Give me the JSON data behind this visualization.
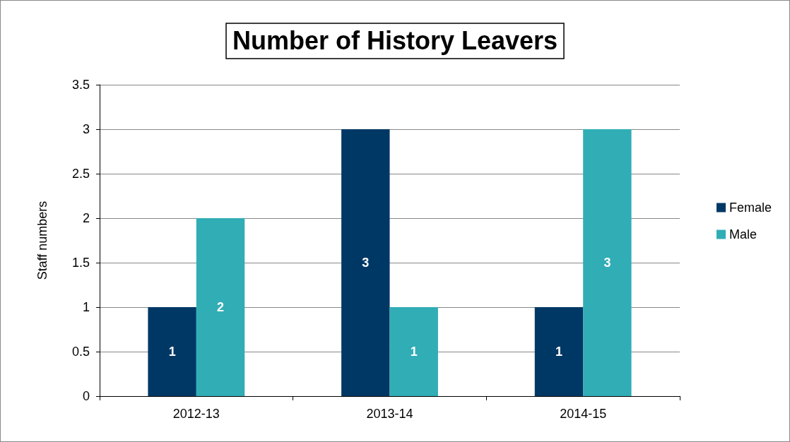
{
  "chart_data": {
    "type": "bar",
    "title": "Number of History Leavers",
    "ylabel": "Staff numbers",
    "categories": [
      "2012-13",
      "2013-14",
      "2014-15"
    ],
    "series": [
      {
        "name": "Female",
        "color": "#003865",
        "values": [
          1,
          3,
          1
        ]
      },
      {
        "name": "Male",
        "color": "#31adb6",
        "values": [
          2,
          1,
          3
        ]
      }
    ],
    "ylim": [
      0,
      3.5
    ],
    "yticks": [
      0,
      0.5,
      1,
      1.5,
      2,
      2.5,
      3,
      3.5
    ],
    "grid": "y",
    "legend": "right",
    "data_labels": true
  }
}
